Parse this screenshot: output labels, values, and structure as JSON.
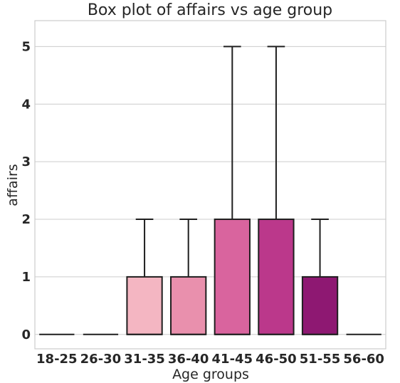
{
  "chart_data": {
    "type": "box",
    "title": "Box plot of affairs vs age group",
    "xlabel": "Age groups",
    "ylabel": "affairs",
    "ylim": [
      -0.25,
      5.45
    ],
    "yticks": [
      "0",
      "1",
      "2",
      "3",
      "4",
      "5"
    ],
    "grid": true,
    "categories": [
      "18-25",
      "26-30",
      "31-35",
      "36-40",
      "41-45",
      "46-50",
      "51-55",
      "56-60"
    ],
    "boxes": [
      {
        "q1": 0,
        "median": 0,
        "q3": 0,
        "whisker_low": 0,
        "whisker_high": 0,
        "color": "#fde0dd"
      },
      {
        "q1": 0,
        "median": 0,
        "q3": 0,
        "whisker_low": 0,
        "whisker_high": 0,
        "color": "#fcc5c0"
      },
      {
        "q1": 0,
        "median": 0,
        "q3": 1,
        "whisker_low": 0,
        "whisker_high": 2,
        "color": "#f4b6c2"
      },
      {
        "q1": 0,
        "median": 0,
        "q3": 1,
        "whisker_low": 0,
        "whisker_high": 2,
        "color": "#e990ad"
      },
      {
        "q1": 0,
        "median": 0,
        "q3": 2,
        "whisker_low": 0,
        "whisker_high": 5,
        "color": "#d9649e"
      },
      {
        "q1": 0,
        "median": 0,
        "q3": 2,
        "whisker_low": 0,
        "whisker_high": 5,
        "color": "#bb388b"
      },
      {
        "q1": 0,
        "median": 0,
        "q3": 1,
        "whisker_low": 0,
        "whisker_high": 2,
        "color": "#8e1872"
      },
      {
        "q1": 0,
        "median": 0,
        "q3": 0,
        "whisker_low": 0,
        "whisker_high": 0,
        "color": "#6a0a62"
      }
    ]
  }
}
